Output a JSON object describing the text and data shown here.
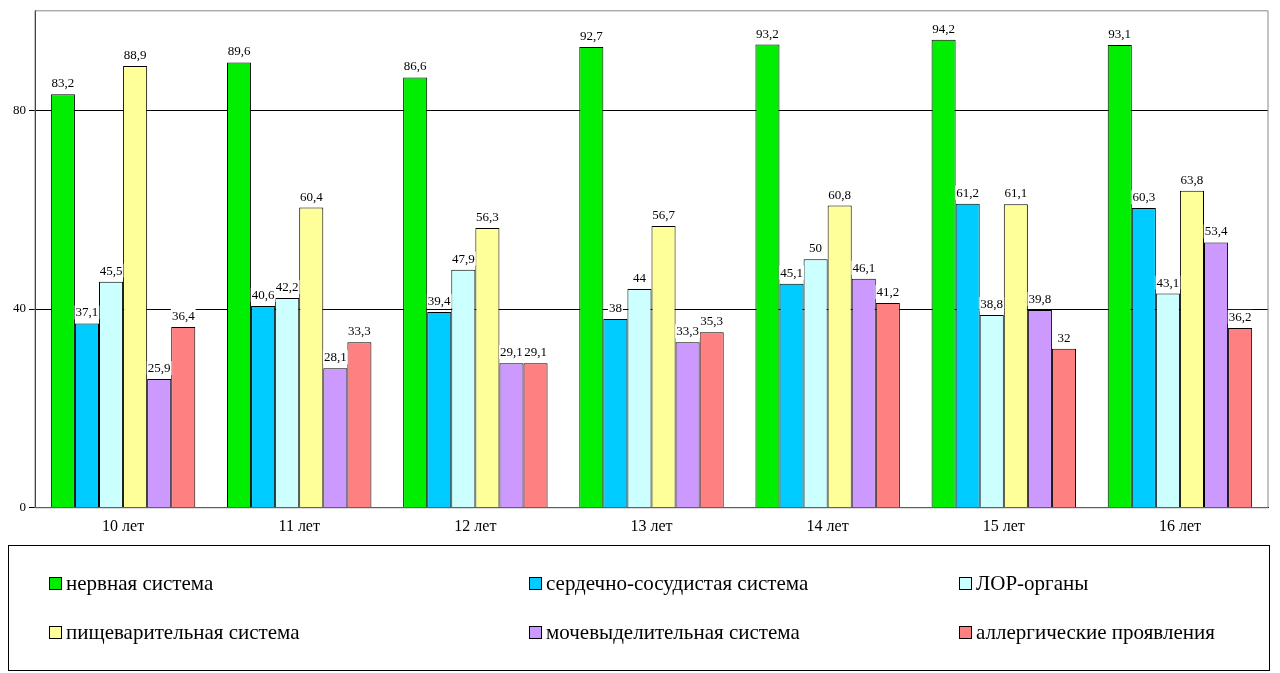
{
  "chart_data": {
    "type": "bar",
    "categories": [
      "10 лет",
      "11 лет",
      "12 лет",
      "13 лет",
      "14 лет",
      "15 лет",
      "16 лет"
    ],
    "series": [
      {
        "name": "нервная система",
        "color": "#00ee00",
        "values": [
          83.2,
          89.6,
          86.6,
          92.7,
          93.2,
          94.2,
          93.1
        ],
        "value_labels": [
          "83,2",
          "89,6",
          "86,6",
          "92,7",
          "93,2",
          "94,2",
          "93,1"
        ]
      },
      {
        "name": "сердечно-сосудистая система",
        "color": "#00ccff",
        "values": [
          37.1,
          40.6,
          39.4,
          38,
          45.1,
          61.2,
          60.3
        ],
        "value_labels": [
          "37,1",
          "40,6",
          "39,4",
          "38",
          "45,1",
          "61,2",
          "60,3"
        ]
      },
      {
        "name": "ЛОР-органы",
        "color": "#ccffff",
        "values": [
          45.5,
          42.2,
          47.9,
          44,
          50,
          38.8,
          43.1
        ],
        "value_labels": [
          "45,5",
          "42,2",
          "47,9",
          "44",
          "50",
          "38,8",
          "43,1"
        ]
      },
      {
        "name": "пищеварительная система",
        "color": "#ffff99",
        "values": [
          88.9,
          60.4,
          56.3,
          56.7,
          60.8,
          61.1,
          63.8
        ],
        "value_labels": [
          "88,9",
          "60,4",
          "56,3",
          "56,7",
          "60,8",
          "61,1",
          "63,8"
        ]
      },
      {
        "name": "мочевыделительная система",
        "color": "#cc99ff",
        "values": [
          25.9,
          28.1,
          29.1,
          33.3,
          46.1,
          39.8,
          53.4
        ],
        "value_labels": [
          "25,9",
          "28,1",
          "29,1",
          "33,3",
          "46,1",
          "39,8",
          "53,4"
        ]
      },
      {
        "name": "аллергические проявления",
        "color": "#ff8080",
        "values": [
          36.4,
          33.3,
          29.1,
          35.3,
          41.2,
          32,
          36.2
        ],
        "value_labels": [
          "36,4",
          "33,3",
          "29,1",
          "35,3",
          "41,2",
          "32",
          "36,2"
        ]
      }
    ],
    "ylim": [
      0,
      100
    ],
    "yticks": [
      0,
      40,
      80
    ],
    "grid": "y",
    "legend": "bottom"
  }
}
